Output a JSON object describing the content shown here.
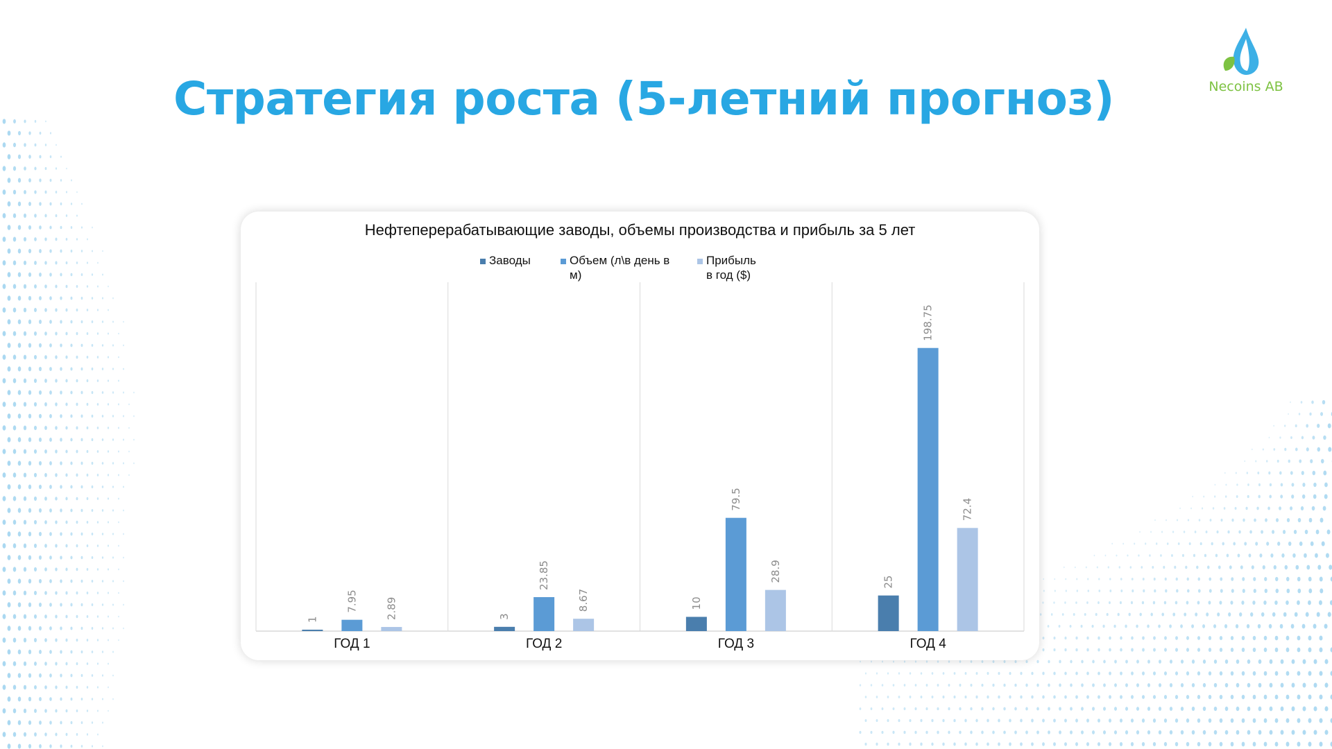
{
  "slide": {
    "title": "Стратегия роста (5-летний прогноз)",
    "logo_text": "Necoins AB"
  },
  "colors": {
    "title": "#28a7e3",
    "series1": "#4a7ead",
    "series2": "#5b9bd5",
    "series3": "#acc5e6",
    "grid": "#d9d9d9",
    "dots": "#9fd3ef",
    "logo_green": "#7dc242",
    "logo_blue": "#28a7e3"
  },
  "chart_data": {
    "type": "bar",
    "title": "Нефтеперерабатывающие заводы, объемы производства и прибыль за 5 лет",
    "categories": [
      "ГОД 1",
      "ГОД 2",
      "ГОД 3",
      "ГОД 4"
    ],
    "series": [
      {
        "name": "Заводы",
        "values": [
          1,
          3,
          10,
          25
        ],
        "labels": [
          "1",
          "3",
          "10",
          "25"
        ]
      },
      {
        "name": "Объем (л\\в день в м)",
        "values": [
          7.95,
          23.85,
          79.5,
          198.75
        ],
        "labels": [
          "7.95",
          "23.85",
          "79.5",
          "198.75"
        ]
      },
      {
        "name": "Прибыль в год ($)",
        "values": [
          2.89,
          8.67,
          28.9,
          72.4
        ],
        "labels": [
          "2.89",
          "8.67",
          "28.9",
          "72.4"
        ]
      }
    ],
    "ylim": [
      0,
      240
    ],
    "grid": "vertical",
    "legend_position": "top"
  }
}
